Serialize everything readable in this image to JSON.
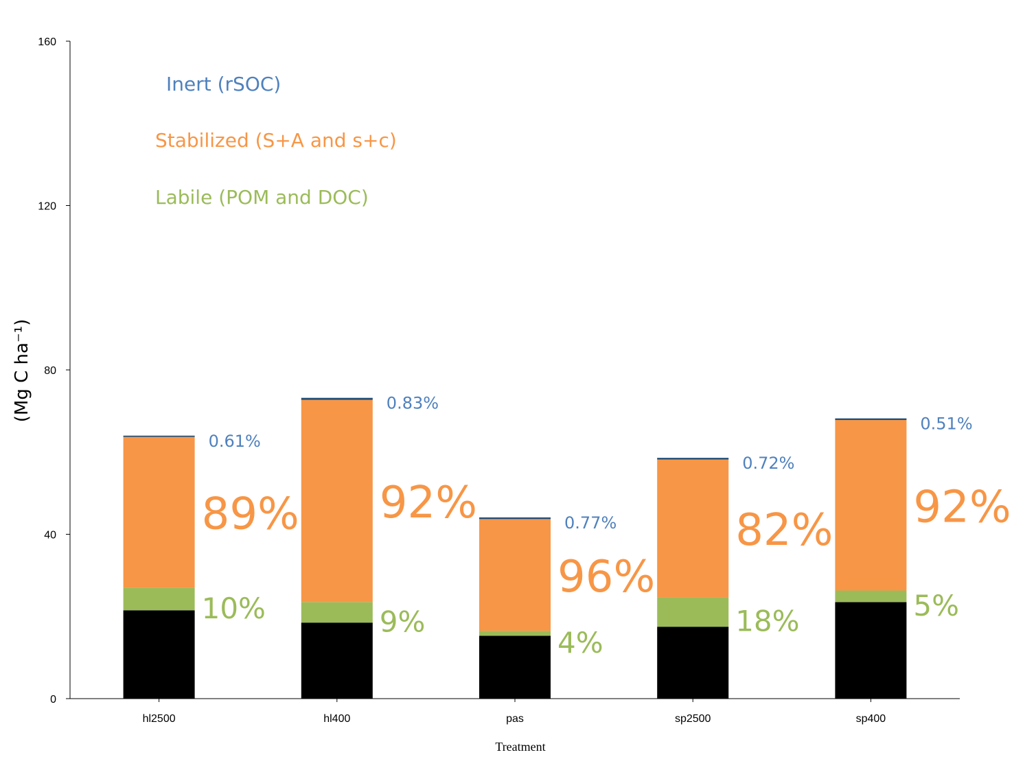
{
  "chart_data": {
    "type": "bar",
    "stacked": true,
    "xlabel": "Treatment",
    "ylabel": "(Mg C ha⁻¹)",
    "ylim": [
      0,
      160
    ],
    "yticks": [
      0,
      40,
      80,
      120,
      160
    ],
    "grid": false,
    "legend_placement": "top-left",
    "categories": [
      "hl2500",
      "hl400",
      "pas",
      "sp2500",
      "sp400"
    ],
    "colors": {
      "base": "#000000",
      "labile": "#9BBB59",
      "stabilized": "#F79646",
      "inert": "#1F4E79",
      "inert_text": "#4F81BD"
    },
    "legend": [
      {
        "key": "inert",
        "label": "Inert (rSOC)"
      },
      {
        "key": "stabilized",
        "label": "Stabilized (S+A and s+c)"
      },
      {
        "key": "labile",
        "label": "Labile (POM and DOC)"
      }
    ],
    "series": [
      {
        "key": "base",
        "values": [
          21.5,
          18.5,
          15.3,
          17.5,
          23.5
        ]
      },
      {
        "key": "labile",
        "name": "Labile (POM and DOC)",
        "values": [
          5.5,
          5.0,
          1.2,
          7.2,
          2.8
        ]
      },
      {
        "key": "stabilized",
        "name": "Stabilized (S+A and s+c)",
        "values": [
          36.7,
          49.2,
          27.2,
          33.5,
          41.5
        ]
      },
      {
        "key": "inert",
        "name": "Inert (rSOC)",
        "values": [
          0.3,
          0.5,
          0.4,
          0.4,
          0.4
        ]
      }
    ],
    "annotations": {
      "inert": [
        "0.61%",
        "0.83%",
        "0.77%",
        "0.72%",
        "0.51%"
      ],
      "stabilized": [
        "89%",
        "92%",
        "96%",
        "82%",
        "92%"
      ],
      "labile": [
        "10%",
        "9%",
        "4%",
        "18%",
        "5%"
      ]
    }
  }
}
